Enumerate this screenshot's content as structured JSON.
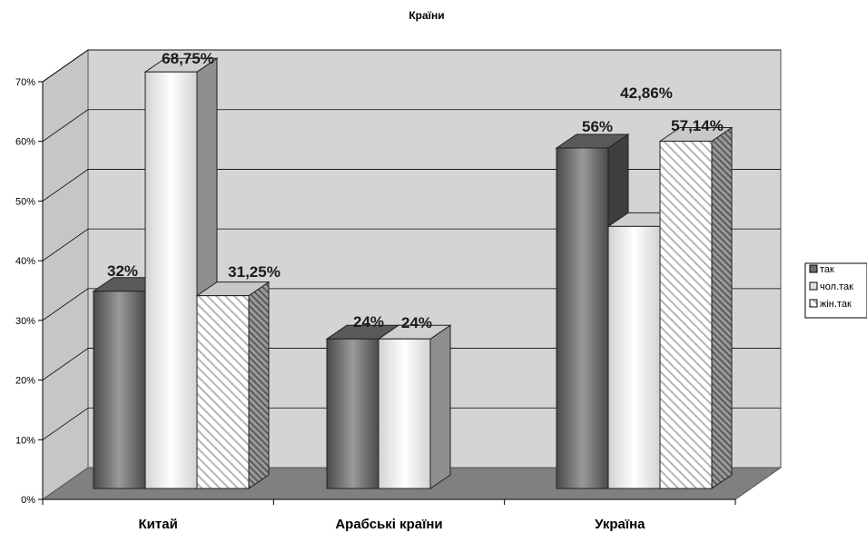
{
  "chart_data": {
    "type": "bar",
    "title": "Країни",
    "categories": [
      "Китай",
      "Арабські країни",
      "Україна"
    ],
    "series": [
      {
        "name": "так",
        "values": [
          32,
          24,
          56
        ],
        "labels": [
          "32%",
          "24%",
          "56%"
        ]
      },
      {
        "name": "чол.так",
        "values": [
          68.75,
          24,
          42.86
        ],
        "labels": [
          "68,75%",
          "24%",
          "42,86%"
        ]
      },
      {
        "name": "жін.так",
        "values": [
          31.25,
          null,
          57.14
        ],
        "labels": [
          "31,25%",
          "",
          "57,14%"
        ]
      }
    ],
    "ylim": [
      0,
      70
    ],
    "yticks": [
      "0%",
      "10%",
      "20%",
      "30%",
      "40%",
      "50%",
      "60%",
      "70%"
    ],
    "grid": true,
    "legend_position": "right",
    "style": "3d-clustered-column",
    "colors": {
      "так": "#6e6e6e",
      "чол.так": "#e0e0e0",
      "жін.так": "#ffffff",
      "wall": "#d4d4d4",
      "floor": "#808080"
    }
  }
}
